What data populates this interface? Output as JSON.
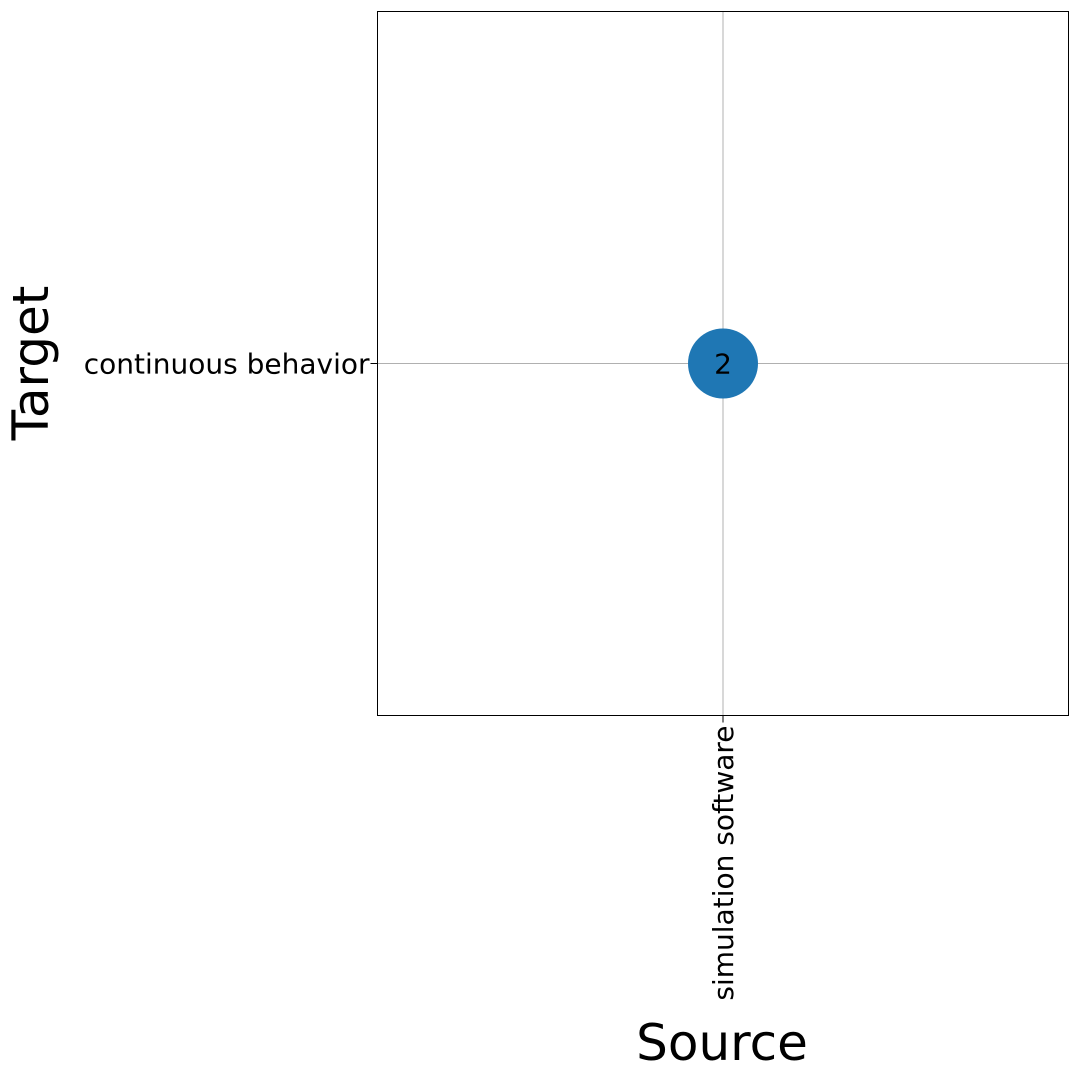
{
  "chart_data": {
    "type": "scatter",
    "title": "",
    "xlabel": "Source",
    "ylabel": "Target",
    "x_categories": [
      "simulation software"
    ],
    "y_categories": [
      "continuous behavior"
    ],
    "points": [
      {
        "x": "simulation software",
        "y": "continuous behavior",
        "value": 2,
        "label": "2"
      }
    ],
    "grid": true,
    "legend": "none",
    "colors": {
      "bubble": "#1f77b4",
      "grid": "#b0b0b0",
      "frame": "#000000"
    }
  }
}
